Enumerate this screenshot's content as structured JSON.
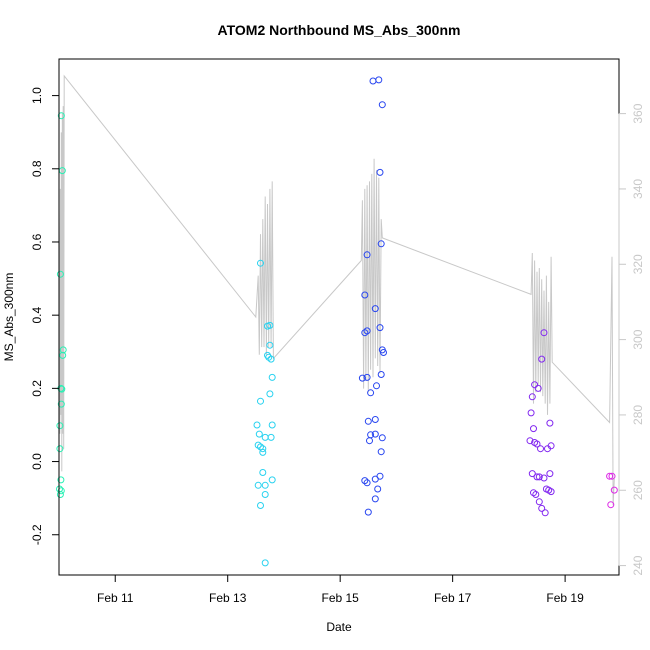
{
  "chart_data": {
    "type": "scatter",
    "title": "ATOM2 Northbound MS_Abs_300nm",
    "xlabel": "Date",
    "ylabel": "MS_Abs_300nm",
    "x_axis": {
      "type": "date",
      "range": [
        "2013-02-10T00:00",
        "2013-02-19T23:00"
      ],
      "ticks": [
        {
          "value": "2013-02-11T00:00",
          "label": "Feb 11"
        },
        {
          "value": "2013-02-13T00:00",
          "label": "Feb 13"
        },
        {
          "value": "2013-02-15T00:00",
          "label": "Feb 15"
        },
        {
          "value": "2013-02-17T00:00",
          "label": "Feb 17"
        },
        {
          "value": "2013-02-19T00:00",
          "label": "Feb 19"
        }
      ]
    },
    "y_axis": {
      "range": [
        -0.31,
        1.1
      ],
      "ticks": [
        -0.2,
        0.0,
        0.2,
        0.4,
        0.6,
        0.8,
        1.0
      ],
      "tick_labels": [
        "-0.2",
        "0.0",
        "0.2",
        "0.4",
        "0.6",
        "0.8",
        "1.0"
      ]
    },
    "y2_axis": {
      "color": "#c8c8c8",
      "range": [
        237.5,
        374.5
      ],
      "ticks": [
        240,
        260,
        280,
        300,
        320,
        340,
        360
      ],
      "tick_labels": [
        "240",
        "260",
        "280",
        "300",
        "320",
        "340",
        "360"
      ]
    },
    "grid": false,
    "legend": "none",
    "colors": {
      "line": "#c8c8c8",
      "group1": "#28f0b4",
      "group2": "#28d2f0",
      "group3": "#2846f0",
      "group4": "#8228f0",
      "group5": "#dc28e6"
    },
    "series": [
      {
        "color_key": "group1",
        "points": [
          [
            "2013-02-10T01:00",
            0.945
          ],
          [
            "2013-02-10T01:24",
            0.795
          ],
          [
            "2013-02-10T00:36",
            0.512
          ],
          [
            "2013-02-10T01:48",
            0.305
          ],
          [
            "2013-02-10T01:36",
            0.29
          ],
          [
            "2013-02-10T00:48",
            0.2
          ],
          [
            "2013-02-10T01:12",
            0.198
          ],
          [
            "2013-02-10T01:00",
            0.157
          ],
          [
            "2013-02-10T00:24",
            0.098
          ],
          [
            "2013-02-10T00:24",
            0.035
          ],
          [
            "2013-02-10T00:48",
            -0.05
          ],
          [
            "2013-02-10T00:12",
            -0.075
          ],
          [
            "2013-02-10T01:00",
            -0.08
          ],
          [
            "2013-02-10T00:36",
            -0.09
          ]
        ]
      },
      {
        "color_key": "group2",
        "points": [
          [
            "2013-02-13T14:00",
            0.542
          ],
          [
            "2013-02-13T17:00",
            0.37
          ],
          [
            "2013-02-13T18:00",
            0.372
          ],
          [
            "2013-02-13T18:00",
            0.318
          ],
          [
            "2013-02-13T17:00",
            0.29
          ],
          [
            "2013-02-13T17:30",
            0.285
          ],
          [
            "2013-02-13T18:30",
            0.28
          ],
          [
            "2013-02-13T19:00",
            0.23
          ],
          [
            "2013-02-13T18:00",
            0.185
          ],
          [
            "2013-02-13T14:00",
            0.165
          ],
          [
            "2013-02-13T12:30",
            0.1
          ],
          [
            "2013-02-13T19:00",
            0.1
          ],
          [
            "2013-02-13T13:30",
            0.075
          ],
          [
            "2013-02-13T16:00",
            0.066
          ],
          [
            "2013-02-13T18:30",
            0.066
          ],
          [
            "2013-02-13T13:00",
            0.045
          ],
          [
            "2013-02-13T14:00",
            0.04
          ],
          [
            "2013-02-13T15:00",
            0.035
          ],
          [
            "2013-02-13T15:00",
            0.025
          ],
          [
            "2013-02-13T15:00",
            -0.03
          ],
          [
            "2013-02-13T19:00",
            -0.05
          ],
          [
            "2013-02-13T13:00",
            -0.065
          ],
          [
            "2013-02-13T16:00",
            -0.065
          ],
          [
            "2013-02-13T16:00",
            -0.09
          ],
          [
            "2013-02-13T14:00",
            -0.12
          ],
          [
            "2013-02-13T16:00",
            -0.277
          ]
        ]
      },
      {
        "color_key": "group3",
        "points": [
          [
            "2013-02-15T14:00",
            1.04
          ],
          [
            "2013-02-15T16:30",
            1.043
          ],
          [
            "2013-02-15T18:00",
            0.975
          ],
          [
            "2013-02-15T17:00",
            0.79
          ],
          [
            "2013-02-15T17:30",
            0.595
          ],
          [
            "2013-02-15T11:30",
            0.565
          ],
          [
            "2013-02-15T10:30",
            0.455
          ],
          [
            "2013-02-15T15:00",
            0.418
          ],
          [
            "2013-02-15T17:00",
            0.366
          ],
          [
            "2013-02-15T11:30",
            0.357
          ],
          [
            "2013-02-15T10:30",
            0.352
          ],
          [
            "2013-02-15T18:00",
            0.305
          ],
          [
            "2013-02-15T18:30",
            0.298
          ],
          [
            "2013-02-15T17:30",
            0.238
          ],
          [
            "2013-02-15T11:30",
            0.23
          ],
          [
            "2013-02-15T09:30",
            0.228
          ],
          [
            "2013-02-15T15:30",
            0.207
          ],
          [
            "2013-02-15T13:00",
            0.188
          ],
          [
            "2013-02-15T15:00",
            0.115
          ],
          [
            "2013-02-15T12:00",
            0.11
          ],
          [
            "2013-02-15T13:00",
            0.073
          ],
          [
            "2013-02-15T15:00",
            0.075
          ],
          [
            "2013-02-15T18:00",
            0.065
          ],
          [
            "2013-02-15T12:30",
            0.057
          ],
          [
            "2013-02-15T17:30",
            0.027
          ],
          [
            "2013-02-15T17:00",
            -0.04
          ],
          [
            "2013-02-15T15:00",
            -0.048
          ],
          [
            "2013-02-15T10:30",
            -0.052
          ],
          [
            "2013-02-15T11:30",
            -0.058
          ],
          [
            "2013-02-15T16:00",
            -0.075
          ],
          [
            "2013-02-15T15:00",
            -0.102
          ],
          [
            "2013-02-15T12:00",
            -0.138
          ]
        ]
      },
      {
        "color_key": "group4",
        "points": [
          [
            "2013-02-18T15:00",
            0.352
          ],
          [
            "2013-02-18T14:00",
            0.28
          ],
          [
            "2013-02-18T11:00",
            0.21
          ],
          [
            "2013-02-18T12:30",
            0.2
          ],
          [
            "2013-02-18T10:00",
            0.177
          ],
          [
            "2013-02-18T09:30",
            0.133
          ],
          [
            "2013-02-18T17:30",
            0.105
          ],
          [
            "2013-02-18T10:30",
            0.09
          ],
          [
            "2013-02-18T09:00",
            0.057
          ],
          [
            "2013-02-18T11:00",
            0.052
          ],
          [
            "2013-02-18T12:00",
            0.048
          ],
          [
            "2013-02-18T18:00",
            0.043
          ],
          [
            "2013-02-18T13:30",
            0.035
          ],
          [
            "2013-02-18T16:30",
            0.035
          ],
          [
            "2013-02-18T10:00",
            -0.033
          ],
          [
            "2013-02-18T17:30",
            -0.033
          ],
          [
            "2013-02-18T12:00",
            -0.042
          ],
          [
            "2013-02-18T13:00",
            -0.042
          ],
          [
            "2013-02-18T15:00",
            -0.045
          ],
          [
            "2013-02-18T16:00",
            -0.075
          ],
          [
            "2013-02-18T17:00",
            -0.078
          ],
          [
            "2013-02-18T18:00",
            -0.082
          ],
          [
            "2013-02-18T10:30",
            -0.085
          ],
          [
            "2013-02-18T11:30",
            -0.09
          ],
          [
            "2013-02-18T13:00",
            -0.11
          ],
          [
            "2013-02-18T14:00",
            -0.128
          ],
          [
            "2013-02-18T15:30",
            -0.14
          ]
        ]
      },
      {
        "color_key": "group5",
        "points": [
          [
            "2013-02-19T19:00",
            -0.04
          ],
          [
            "2013-02-19T20:00",
            -0.04
          ],
          [
            "2013-02-19T21:00",
            -0.078
          ],
          [
            "2013-02-19T19:30",
            -0.118
          ]
        ]
      }
    ],
    "line_series": {
      "axis": "right",
      "points": [
        [
          "2013-02-10T00:00",
          335
        ],
        [
          "2013-02-10T00:12",
          315
        ],
        [
          "2013-02-10T00:24",
          275
        ],
        [
          "2013-02-10T00:36",
          340
        ],
        [
          "2013-02-10T00:48",
          280
        ],
        [
          "2013-02-10T01:00",
          355
        ],
        [
          "2013-02-10T01:12",
          265
        ],
        [
          "2013-02-10T01:24",
          360
        ],
        [
          "2013-02-10T01:36",
          275
        ],
        [
          "2013-02-10T01:48",
          362
        ],
        [
          "2013-02-10T02:00",
          271
        ],
        [
          "2013-02-10T02:12",
          370
        ],
        [
          "2013-02-13T12:00",
          306
        ],
        [
          "2013-02-13T13:00",
          317
        ],
        [
          "2013-02-13T13:30",
          296
        ],
        [
          "2013-02-13T14:00",
          328
        ],
        [
          "2013-02-13T14:30",
          298
        ],
        [
          "2013-02-13T15:00",
          332
        ],
        [
          "2013-02-13T15:30",
          298
        ],
        [
          "2013-02-13T16:00",
          338
        ],
        [
          "2013-02-13T16:30",
          296
        ],
        [
          "2013-02-13T17:00",
          336
        ],
        [
          "2013-02-13T17:30",
          298
        ],
        [
          "2013-02-13T18:00",
          340
        ],
        [
          "2013-02-13T18:30",
          298
        ],
        [
          "2013-02-13T19:00",
          342
        ],
        [
          "2013-02-13T19:30",
          295
        ],
        [
          "2013-02-15T09:00",
          321
        ],
        [
          "2013-02-15T09:30",
          337
        ],
        [
          "2013-02-15T10:00",
          287
        ],
        [
          "2013-02-15T10:30",
          340
        ],
        [
          "2013-02-15T11:00",
          289
        ],
        [
          "2013-02-15T11:30",
          341
        ],
        [
          "2013-02-15T12:00",
          286
        ],
        [
          "2013-02-15T12:30",
          342
        ],
        [
          "2013-02-15T13:00",
          292
        ],
        [
          "2013-02-15T13:30",
          344
        ],
        [
          "2013-02-15T14:00",
          290
        ],
        [
          "2013-02-15T14:30",
          348
        ],
        [
          "2013-02-15T15:00",
          295
        ],
        [
          "2013-02-15T15:30",
          345
        ],
        [
          "2013-02-15T16:00",
          293
        ],
        [
          "2013-02-15T16:30",
          343
        ],
        [
          "2013-02-15T17:00",
          291
        ],
        [
          "2013-02-15T17:30",
          332
        ],
        [
          "2013-02-15T18:00",
          327
        ],
        [
          "2013-02-18T09:30",
          312
        ],
        [
          "2013-02-18T10:00",
          323
        ],
        [
          "2013-02-18T10:30",
          283
        ],
        [
          "2013-02-18T11:00",
          321
        ],
        [
          "2013-02-18T11:30",
          286
        ],
        [
          "2013-02-18T12:00",
          318
        ],
        [
          "2013-02-18T12:30",
          288
        ],
        [
          "2013-02-18T13:00",
          319
        ],
        [
          "2013-02-18T13:30",
          286
        ],
        [
          "2013-02-18T14:00",
          316
        ],
        [
          "2013-02-18T14:30",
          285
        ],
        [
          "2013-02-18T15:00",
          313
        ],
        [
          "2013-02-18T15:30",
          283
        ],
        [
          "2013-02-18T16:00",
          317
        ],
        [
          "2013-02-18T16:30",
          280
        ],
        [
          "2013-02-18T17:00",
          310
        ],
        [
          "2013-02-18T17:30",
          283
        ],
        [
          "2013-02-18T18:00",
          322
        ],
        [
          "2013-02-18T18:30",
          294
        ],
        [
          "2013-02-19T19:00",
          278
        ],
        [
          "2013-02-19T20:00",
          322
        ],
        [
          "2013-02-19T20:30",
          256
        ],
        [
          "2013-02-19T21:00",
          263
        ]
      ]
    }
  }
}
